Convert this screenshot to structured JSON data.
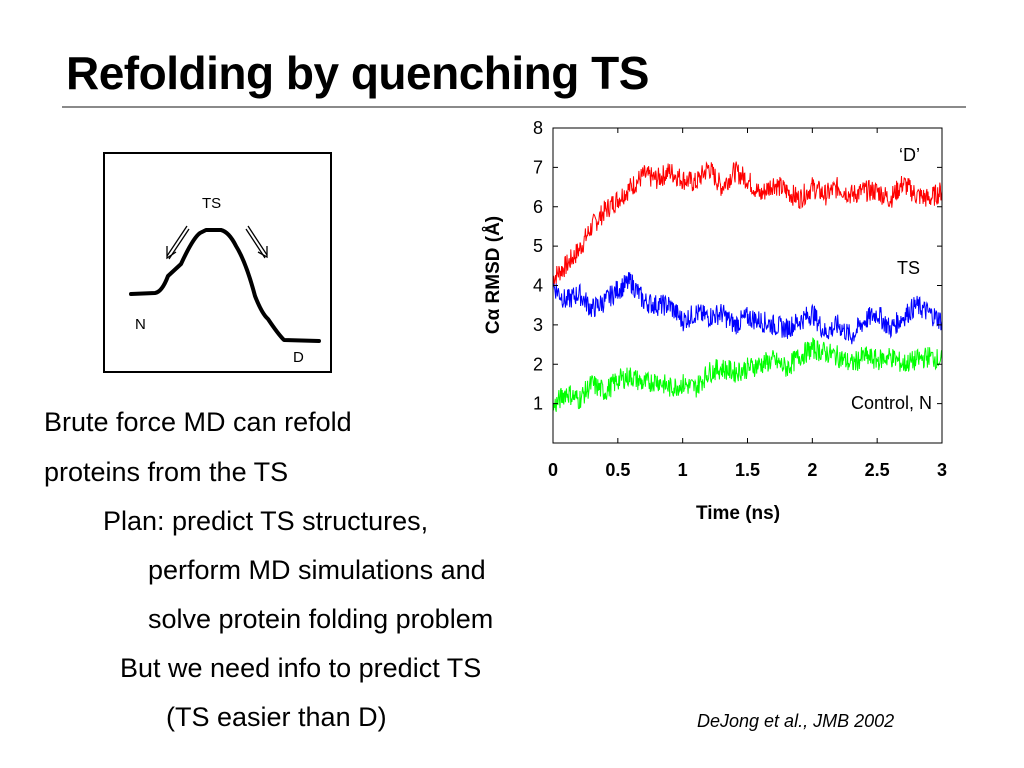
{
  "slide": {
    "title": "Refolding by quenching TS",
    "energy_diagram": {
      "ts_label": "TS",
      "n_label": "N",
      "d_label": "D"
    },
    "bullets": [
      "Brute force MD can refold",
      "proteins from the TS",
      "Plan: predict TS structures,",
      "perform MD simulations and",
      "solve protein folding problem",
      "But we need info to predict TS",
      "(TS easier than D)"
    ],
    "citation": "DeJong et al., JMB 2002"
  },
  "chart_data": {
    "type": "line",
    "xlabel": "Time (ns)",
    "ylabel": "Cα RMSD (Å)",
    "xlim": [
      0,
      3
    ],
    "ylim": [
      0,
      8
    ],
    "xticks": [
      "0",
      "0.5",
      "1",
      "1.5",
      "2",
      "2.5",
      "3"
    ],
    "yticks": [
      "1",
      "2",
      "3",
      "4",
      "5",
      "6",
      "7",
      "8"
    ],
    "grid": false,
    "series": [
      {
        "name": "‘D’",
        "color": "#ff0000",
        "x": [
          0,
          0.1,
          0.2,
          0.3,
          0.4,
          0.5,
          0.6,
          0.7,
          0.8,
          0.9,
          1.0,
          1.1,
          1.2,
          1.3,
          1.4,
          1.5,
          1.6,
          1.7,
          1.8,
          1.9,
          2.0,
          2.1,
          2.2,
          2.3,
          2.4,
          2.5,
          2.6,
          2.7,
          2.8,
          2.9,
          3.0
        ],
        "y": [
          4.2,
          4.5,
          4.9,
          5.5,
          5.9,
          6.2,
          6.5,
          6.8,
          6.7,
          6.9,
          6.7,
          6.6,
          7.0,
          6.5,
          6.9,
          6.7,
          6.3,
          6.6,
          6.4,
          6.2,
          6.5,
          6.3,
          6.5,
          6.3,
          6.4,
          6.4,
          6.2,
          6.6,
          6.3,
          6.2,
          6.4
        ]
      },
      {
        "name": "TS",
        "color": "#0000ff",
        "x": [
          0,
          0.1,
          0.2,
          0.3,
          0.4,
          0.5,
          0.6,
          0.7,
          0.8,
          0.9,
          1.0,
          1.1,
          1.2,
          1.3,
          1.4,
          1.5,
          1.6,
          1.7,
          1.8,
          1.9,
          2.0,
          2.1,
          2.2,
          2.3,
          2.4,
          2.5,
          2.6,
          2.7,
          2.8,
          2.9,
          3.0
        ],
        "y": [
          4.0,
          3.6,
          3.8,
          3.4,
          3.6,
          3.9,
          4.1,
          3.6,
          3.5,
          3.5,
          3.1,
          3.3,
          3.2,
          3.3,
          3.0,
          3.2,
          3.1,
          3.0,
          2.9,
          3.1,
          3.3,
          2.8,
          3.0,
          2.7,
          3.1,
          3.3,
          2.9,
          3.2,
          3.5,
          3.3,
          3.1
        ]
      },
      {
        "name": "Control, N",
        "color": "#00ff00",
        "x": [
          0,
          0.1,
          0.2,
          0.3,
          0.4,
          0.5,
          0.6,
          0.7,
          0.8,
          0.9,
          1.0,
          1.1,
          1.2,
          1.3,
          1.4,
          1.5,
          1.6,
          1.7,
          1.8,
          1.9,
          2.0,
          2.1,
          2.2,
          2.3,
          2.4,
          2.5,
          2.6,
          2.7,
          2.8,
          2.9,
          3.0
        ],
        "y": [
          0.9,
          1.3,
          1.1,
          1.5,
          1.3,
          1.6,
          1.7,
          1.5,
          1.6,
          1.4,
          1.5,
          1.4,
          1.8,
          1.9,
          1.8,
          1.9,
          2.0,
          2.1,
          1.9,
          2.2,
          2.4,
          2.3,
          2.2,
          2.0,
          2.2,
          2.1,
          2.2,
          2.0,
          2.1,
          2.2,
          2.1
        ]
      }
    ]
  }
}
